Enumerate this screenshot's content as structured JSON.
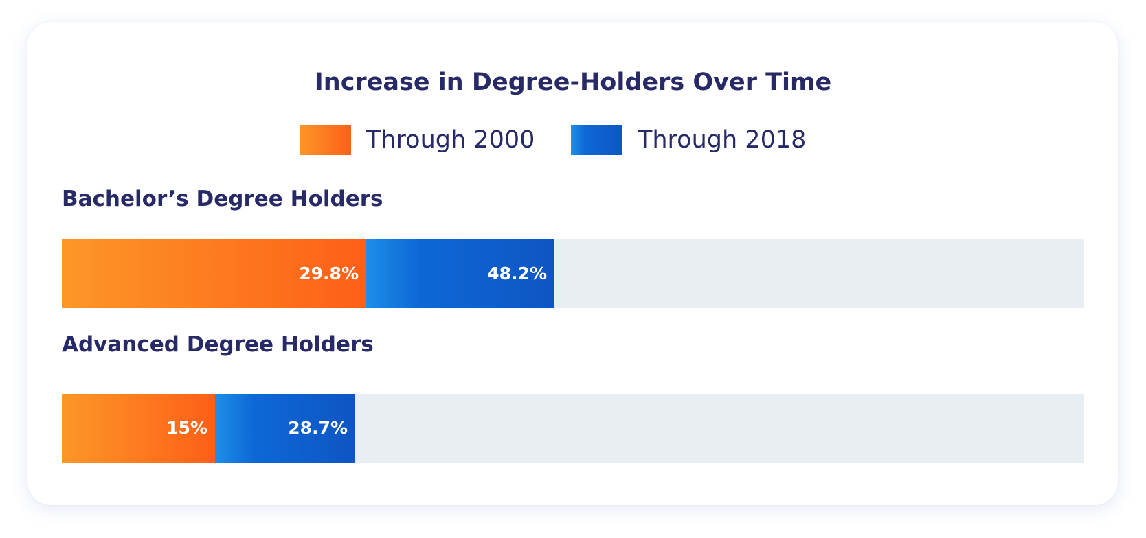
{
  "chart_data": {
    "type": "bar",
    "orientation": "horizontal",
    "stacked": true,
    "title": "Increase in Degree-Holders Over Time",
    "xlabel": "",
    "ylabel": "",
    "xlim": [
      0,
      100
    ],
    "grid": false,
    "legend_position": "top-center",
    "categories": [
      "Bachelor’s Degree Holders",
      "Advanced Degree Holders"
    ],
    "series": [
      {
        "name": "Through 2000",
        "values": [
          29.8,
          15
        ],
        "labels": [
          "29.8%",
          "15%"
        ],
        "colors": [
          "#fd9727",
          "#fd5f18"
        ]
      },
      {
        "name": "Through 2018",
        "values": [
          48.2,
          28.7
        ],
        "labels": [
          "48.2%",
          "28.7%"
        ],
        "colors": [
          "#1e8ee8",
          "#0e55c4"
        ]
      }
    ],
    "track_color": "#e9eef2"
  }
}
